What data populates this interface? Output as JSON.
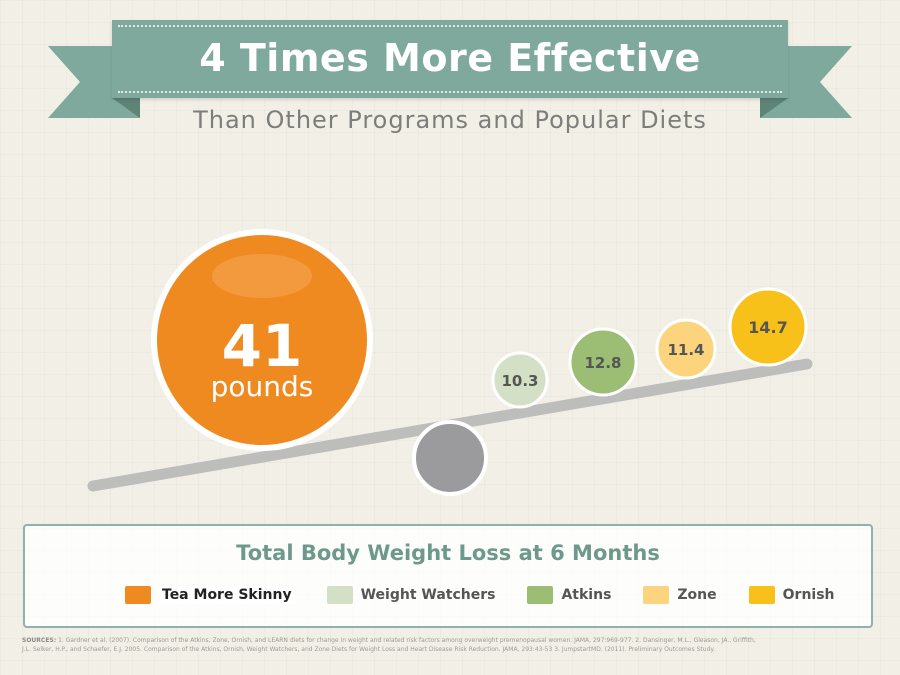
{
  "header": {
    "title": "4 Times More Effective",
    "subtitle": "Than Other Programs and Popular Diets"
  },
  "chart_data": {
    "type": "bubble",
    "title": "Total Body Weight Loss at 6 Months",
    "unit": "pounds",
    "series": [
      {
        "name": "Tea More Skinny",
        "value": 41,
        "color": "#ef8a21"
      },
      {
        "name": "Weight Watchers",
        "value": 10.3,
        "color": "#d3e0c6"
      },
      {
        "name": "Atkins",
        "value": 12.8,
        "color": "#9bbd74"
      },
      {
        "name": "Zone",
        "value": 11.4,
        "color": "#fbd47d"
      },
      {
        "name": "Ornish",
        "value": 14.7,
        "color": "#f8c11a"
      }
    ],
    "legend_position": "bottom"
  },
  "sources": {
    "label": "SOURCES:",
    "line1": "1. Gardner et al. (2007). Comparison of the Atkins, Zone, Ornish, and LEARN diets for change in weight and related risk factors among overweight premenopausal women. JAMA, 297:969-977. 2. Dansinger, M.L., Gleason, JA., Griffith,",
    "line2": "J.L. Selker, H.P., and Schaefer, E.J. 2005. Comparison of the Atkins, Ornish, Weight Watchers, and Zone Diets for Weight Loss and Heart Disease Risk Reduction. JAMA, 293:43-53 3. JumpstartMD. (2011). Preliminary Outcomes Study."
  },
  "colors": {
    "ribbon": "#7fa99c",
    "ribbon_fold": "#6f9386",
    "beam": "#bdbdbb",
    "fulcrum": "#9b9b9d",
    "legend_border": "#8fb3a6"
  }
}
